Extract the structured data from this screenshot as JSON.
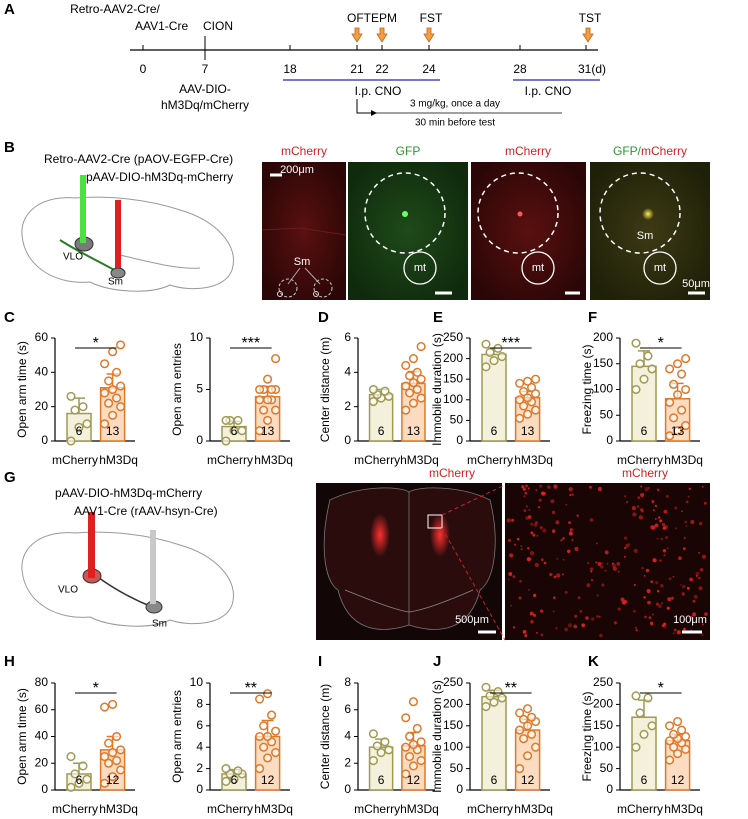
{
  "panel_labels": [
    "A",
    "B",
    "C",
    "D",
    "E",
    "F",
    "G",
    "H",
    "I",
    "J",
    "K"
  ],
  "timeline": {
    "top_label": [
      "Retro-AAV2-Cre/",
      "AAV1-Cre"
    ],
    "cion": "CION",
    "virus": [
      "AAV-DIO-",
      "hM3Dq/mCherry"
    ],
    "days": [
      "0",
      "7",
      "18",
      "21",
      "22",
      "24",
      "28",
      "31(d)"
    ],
    "tests": [
      "OFT",
      "EPM",
      "FST",
      "TST"
    ],
    "cno": [
      "I.p. CNO",
      "I.p. CNO"
    ],
    "dose": "3 mg/kg, once a day",
    "timing": "30 min before test"
  },
  "panel_b": {
    "virus_1": "Retro-AAV2-Cre (pAOV-EGFP-Cre)",
    "virus_2": "pAAV-DIO-hM3Dq-mCherry",
    "region_1": "VLO",
    "region_2": "Sm",
    "image_titles": [
      "mCherry",
      "GFP",
      "mCherry",
      "GFP/mCherry"
    ],
    "scale_1": "200μm",
    "scale_2": "50μm",
    "overview_label": "Sm",
    "mt_label": "mt",
    "merge_label": "Sm"
  },
  "panel_g": {
    "virus_1": "pAAV-DIO-hM3Dq-mCherry",
    "virus_2": "AAV1-Cre (rAAV-hsyn-Cre)",
    "region_1": "VLO",
    "region_2": "Sm",
    "image_titles": [
      "mCherry",
      "mCherry"
    ],
    "scale_1": "500μm",
    "scale_2": "100μm"
  },
  "chart_data": [
    {
      "type": "bar",
      "ylabel": "Open arm time (s)",
      "categories": [
        "mCherry",
        "hM3Dq"
      ],
      "values": [
        16,
        31
      ],
      "errors": [
        9,
        8
      ],
      "n": [
        6,
        13
      ],
      "points": [
        [
          0,
          8,
          10,
          18,
          20,
          26
        ],
        [
          10,
          15,
          20,
          22,
          25,
          28,
          30,
          32,
          35,
          40,
          45,
          52,
          56
        ]
      ],
      "ylim": [
        0,
        60
      ],
      "yticks": [
        0,
        20,
        40,
        60
      ],
      "significance": "*",
      "colors": [
        "#a09a52",
        "#e0782a"
      ],
      "fills": [
        "#f3f0dc",
        "#fbdcc0"
      ]
    },
    {
      "type": "bar",
      "ylabel": "Open arm entries",
      "categories": [
        "mCherry",
        "hM3Dq"
      ],
      "values": [
        1.4,
        4.3
      ],
      "errors": [
        0.5,
        1
      ],
      "n": [
        6,
        13
      ],
      "points": [
        [
          0,
          1,
          1,
          2,
          2,
          2
        ],
        [
          1,
          2,
          3,
          3,
          4,
          4,
          4,
          5,
          5,
          5,
          5,
          6,
          8
        ]
      ],
      "ylim": [
        0,
        10
      ],
      "yticks": [
        0,
        5,
        10
      ],
      "significance": "***",
      "colors": [
        "#a09a52",
        "#e0782a"
      ],
      "fills": [
        "#f3f0dc",
        "#fbdcc0"
      ]
    },
    {
      "type": "bar",
      "ylabel": "Center distance (m)",
      "categories": [
        "mCherry",
        "hM3Dq"
      ],
      "values": [
        2.7,
        3.35
      ],
      "errors": [
        0.3,
        0.7
      ],
      "n": [
        6,
        13
      ],
      "points": [
        [
          2.3,
          2.5,
          2.6,
          2.7,
          2.9,
          3.0
        ],
        [
          1.8,
          2.2,
          2.5,
          2.8,
          3.0,
          3.2,
          3.4,
          3.6,
          3.8,
          4.0,
          4.4,
          4.8,
          5.5
        ]
      ],
      "ylim": [
        0,
        6
      ],
      "yticks": [
        0,
        2,
        4,
        6
      ],
      "colors": [
        "#a09a52",
        "#e0782a"
      ],
      "fills": [
        "#f3f0dc",
        "#fbdcc0"
      ]
    },
    {
      "type": "bar",
      "ylabel": "Immobile duration (s)",
      "categories": [
        "mCherry",
        "hM3Dq"
      ],
      "values": [
        210,
        105
      ],
      "errors": [
        15,
        15
      ],
      "n": [
        6,
        13
      ],
      "points": [
        [
          180,
          195,
          205,
          215,
          225,
          235
        ],
        [
          55,
          65,
          75,
          85,
          95,
          100,
          105,
          115,
          120,
          130,
          140,
          145,
          150
        ]
      ],
      "ylim": [
        0,
        250
      ],
      "yticks": [
        0,
        50,
        100,
        150,
        200,
        250
      ],
      "significance": "***",
      "colors": [
        "#a09a52",
        "#e0782a"
      ],
      "fills": [
        "#f3f0dc",
        "#fbdcc0"
      ]
    },
    {
      "type": "bar",
      "ylabel": "Freezing time (s)",
      "categories": [
        "mCherry",
        "hM3Dq"
      ],
      "values": [
        145,
        82
      ],
      "errors": [
        30,
        30
      ],
      "n": [
        6,
        13
      ],
      "points": [
        [
          100,
          120,
          140,
          150,
          165,
          190
        ],
        [
          10,
          20,
          30,
          45,
          60,
          75,
          90,
          100,
          110,
          130,
          140,
          150,
          160
        ]
      ],
      "ylim": [
        0,
        200
      ],
      "yticks": [
        0,
        50,
        100,
        150,
        200
      ],
      "significance": "*",
      "colors": [
        "#a09a52",
        "#e0782a"
      ],
      "fills": [
        "#f3f0dc",
        "#fbdcc0"
      ]
    },
    {
      "type": "bar",
      "ylabel": "Open arm time (s)",
      "categories": [
        "mCherry",
        "hM3Dq"
      ],
      "values": [
        12,
        30
      ],
      "errors": [
        8,
        10
      ],
      "n": [
        6,
        12
      ],
      "points": [
        [
          2,
          5,
          8,
          12,
          18,
          25
        ],
        [
          5,
          10,
          15,
          20,
          22,
          25,
          28,
          30,
          35,
          40,
          62,
          64
        ]
      ],
      "ylim": [
        0,
        80
      ],
      "yticks": [
        0,
        20,
        40,
        60,
        80
      ],
      "significance": "*",
      "colors": [
        "#a09a52",
        "#e0782a"
      ],
      "fills": [
        "#f3f0dc",
        "#fbdcc0"
      ]
    },
    {
      "type": "bar",
      "ylabel": "Open arm entries",
      "categories": [
        "mCherry",
        "hM3Dq"
      ],
      "values": [
        1.5,
        5
      ],
      "errors": [
        0.4,
        1.5
      ],
      "n": [
        6,
        12
      ],
      "points": [
        [
          0.8,
          1,
          1.5,
          1.5,
          1.8,
          2
        ],
        [
          2,
          3,
          3.5,
          4,
          4.5,
          5,
          5,
          5.5,
          6,
          7,
          8.5,
          9
        ]
      ],
      "ylim": [
        0,
        10
      ],
      "yticks": [
        0,
        2,
        4,
        6,
        8,
        10
      ],
      "significance": "**",
      "colors": [
        "#a09a52",
        "#e0782a"
      ],
      "fills": [
        "#f3f0dc",
        "#fbdcc0"
      ]
    },
    {
      "type": "bar",
      "ylabel": "Center distance (m)",
      "categories": [
        "mCherry",
        "hM3Dq"
      ],
      "values": [
        3.2,
        3.3
      ],
      "errors": [
        0.6,
        1.0
      ],
      "n": [
        6,
        12
      ],
      "points": [
        [
          2.2,
          2.8,
          3.0,
          3.3,
          3.6,
          4.2
        ],
        [
          1.2,
          1.8,
          2.2,
          2.5,
          3,
          3.2,
          3.4,
          3.6,
          4,
          4.6,
          5.4,
          6.6
        ]
      ],
      "ylim": [
        0,
        8
      ],
      "yticks": [
        0,
        2,
        4,
        6,
        8
      ],
      "colors": [
        "#a09a52",
        "#e0782a"
      ],
      "fills": [
        "#f3f0dc",
        "#fbdcc0"
      ]
    },
    {
      "type": "bar",
      "ylabel": "Immobile duration (s)",
      "categories": [
        "mCherry",
        "hM3Dq"
      ],
      "values": [
        218,
        140
      ],
      "errors": [
        15,
        25
      ],
      "n": [
        6,
        12
      ],
      "points": [
        [
          195,
          205,
          215,
          220,
          230,
          240
        ],
        [
          50,
          80,
          100,
          120,
          130,
          140,
          150,
          160,
          165,
          170,
          180,
          190
        ]
      ],
      "ylim": [
        0,
        250
      ],
      "yticks": [
        0,
        50,
        100,
        150,
        200,
        250
      ],
      "significance": "**",
      "colors": [
        "#a09a52",
        "#e0782a"
      ],
      "fills": [
        "#f3f0dc",
        "#fbdcc0"
      ]
    },
    {
      "type": "bar",
      "ylabel": "Freezing time (s)",
      "categories": [
        "mCherry",
        "hM3Dq"
      ],
      "values": [
        170,
        115
      ],
      "errors": [
        40,
        15
      ],
      "n": [
        6,
        12
      ],
      "points": [
        [
          100,
          130,
          150,
          180,
          215,
          220
        ],
        [
          70,
          85,
          95,
          100,
          110,
          115,
          120,
          125,
          130,
          140,
          150,
          160
        ]
      ],
      "ylim": [
        0,
        250
      ],
      "yticks": [
        0,
        50,
        100,
        150,
        200,
        250
      ],
      "significance": "*",
      "colors": [
        "#a09a52",
        "#e0782a"
      ],
      "fills": [
        "#f3f0dc",
        "#fbdcc0"
      ]
    }
  ]
}
